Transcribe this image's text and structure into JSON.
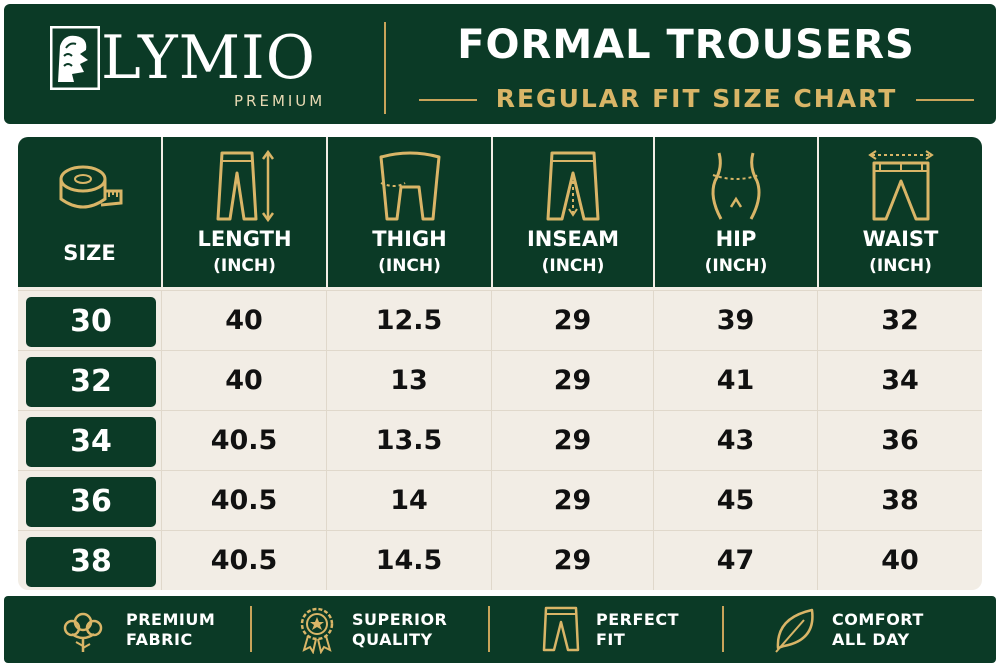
{
  "header": {
    "brand": "LYMIO",
    "brand_sub": "PREMIUM",
    "title": "FORMAL TROUSERS",
    "subtitle": "REGULAR FIT SIZE CHART",
    "logo_icon": "lion-crest-icon"
  },
  "table": {
    "size_header": "SIZE",
    "columns": [
      {
        "label": "LENGTH",
        "unit": "(INCH)",
        "icon": "trouser-length-icon"
      },
      {
        "label": "THIGH",
        "unit": "(INCH)",
        "icon": "thigh-measure-icon"
      },
      {
        "label": "INSEAM",
        "unit": "(INCH)",
        "icon": "inseam-measure-icon"
      },
      {
        "label": "HIP",
        "unit": "(INCH)",
        "icon": "hip-measure-icon"
      },
      {
        "label": "WAIST",
        "unit": "(INCH)",
        "icon": "waist-measure-icon"
      }
    ],
    "rows": [
      {
        "size": "30",
        "values": [
          "40",
          "12.5",
          "29",
          "39",
          "32"
        ]
      },
      {
        "size": "32",
        "values": [
          "40",
          "13",
          "29",
          "41",
          "34"
        ]
      },
      {
        "size": "34",
        "values": [
          "40.5",
          "13.5",
          "29",
          "43",
          "36"
        ]
      },
      {
        "size": "36",
        "values": [
          "40.5",
          "14",
          "29",
          "45",
          "38"
        ]
      },
      {
        "size": "38",
        "values": [
          "40.5",
          "14.5",
          "29",
          "47",
          "40"
        ]
      }
    ]
  },
  "features": [
    {
      "line1": "PREMIUM",
      "line2": "FABRIC",
      "icon": "cotton-flower-icon"
    },
    {
      "line1": "SUPERIOR",
      "line2": "QUALITY",
      "icon": "quality-badge-icon"
    },
    {
      "line1": "PERFECT",
      "line2": "FIT",
      "icon": "trousers-icon"
    },
    {
      "line1": "COMFORT",
      "line2": "ALL DAY",
      "icon": "leaf-icon"
    }
  ],
  "colors": {
    "brand_green": "#0b3a26",
    "gold": "#c9a45a",
    "cell_bg": "#f2ede5"
  }
}
